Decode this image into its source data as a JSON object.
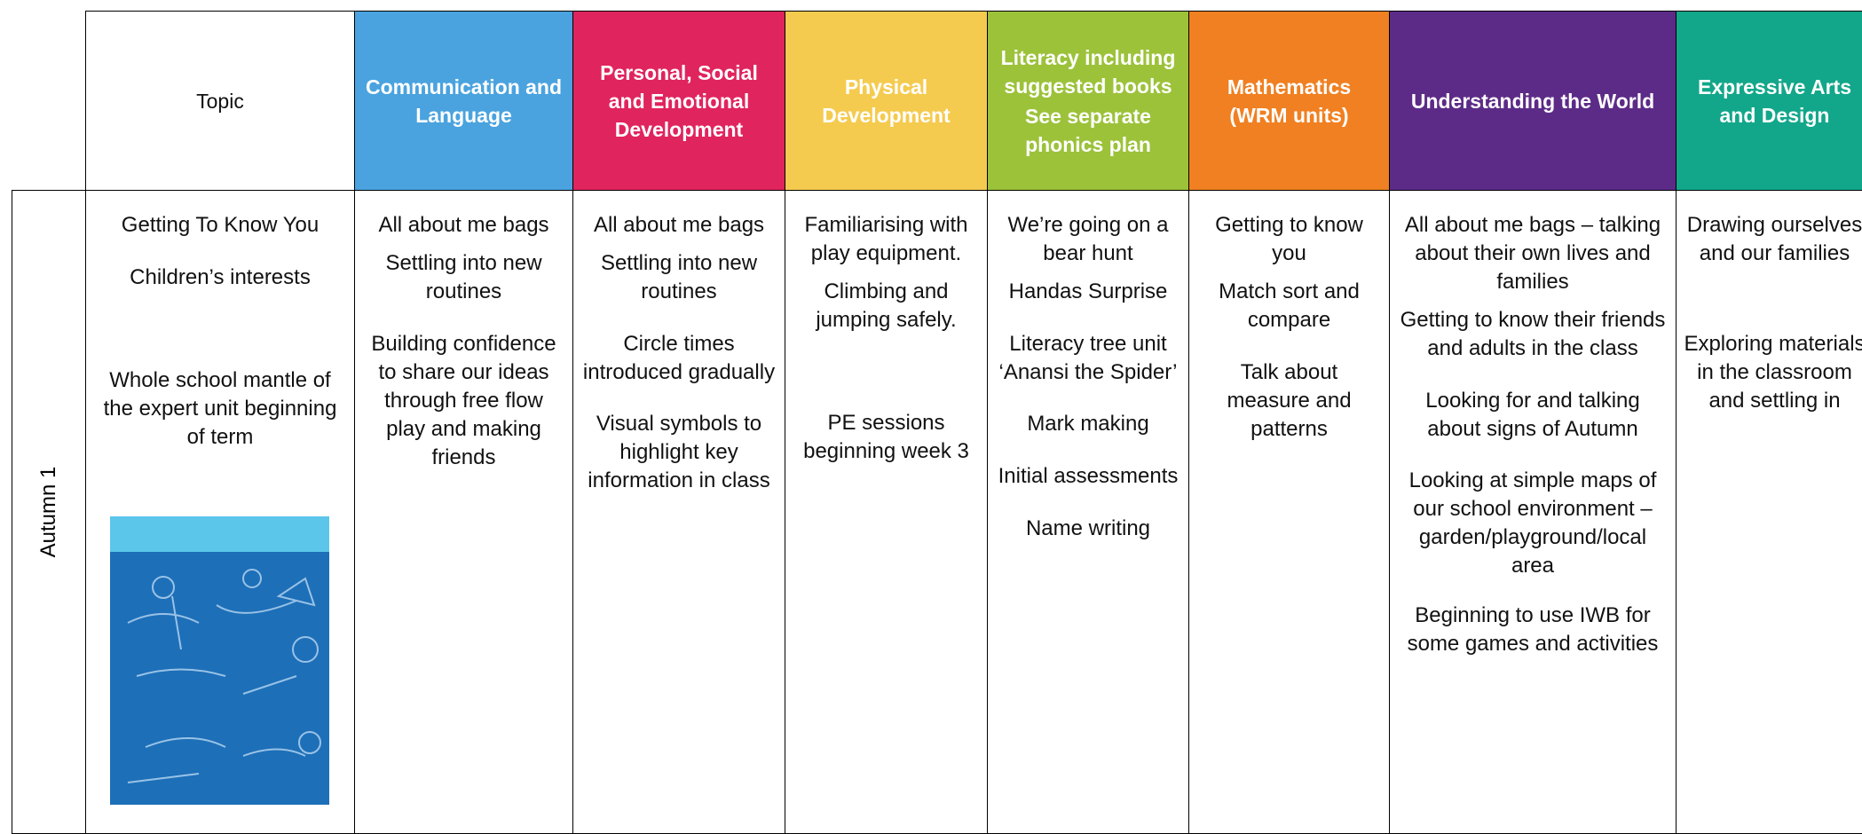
{
  "table": {
    "corner_header": "Topic",
    "column_headers": [
      {
        "lines": [
          "Communication and Language"
        ],
        "color": "#4aa3df"
      },
      {
        "lines": [
          "Personal, Social and Emotional Development"
        ],
        "color": "#e0245e"
      },
      {
        "lines": [
          "Physical Development"
        ],
        "color": "#f5cb4f"
      },
      {
        "lines": [
          "Literacy including suggested books",
          "See separate phonics plan"
        ],
        "color": "#9cc23a"
      },
      {
        "lines": [
          "Mathematics (WRM units)"
        ],
        "color": "#f08021"
      },
      {
        "lines": [
          "Understanding the World"
        ],
        "color": "#5c2b87"
      },
      {
        "lines": [
          "Expressive Arts and Design"
        ],
        "color": "#12a78a"
      }
    ],
    "row_label": "Autumn 1",
    "topic": [
      "Getting To Know You",
      "Children’s interests",
      "Whole school mantle of the expert unit beginning of term"
    ],
    "cells": [
      [
        "All about me bags",
        "Settling into new routines",
        "Building confidence to share our ideas through free flow play and making friends"
      ],
      [
        "All about me bags",
        "Settling into new routines",
        "Circle times introduced gradually",
        "Visual symbols to highlight key information in class"
      ],
      [
        "Familiarising with play equipment.",
        "Climbing and jumping safely.",
        "PE sessions beginning week 3"
      ],
      [
        "We’re going on a bear hunt",
        "Handas Surprise",
        "Literacy tree unit ‘Anansi the Spider’",
        "Mark making",
        "Initial assessments",
        "Name writing"
      ],
      [
        "Getting to know you",
        "Match sort and compare",
        "Talk about measure and patterns"
      ],
      [
        "All about me bags – talking about their own lives and families",
        "Getting to know their friends and adults in the class",
        "Looking for and talking about signs of Autumn",
        "Looking at simple maps of our school environment – garden/playground/local area",
        "Beginning to use IWB for some games and activities"
      ],
      [
        "Drawing ourselves and our families",
        "Exploring materials in the classroom and settling in"
      ]
    ]
  }
}
